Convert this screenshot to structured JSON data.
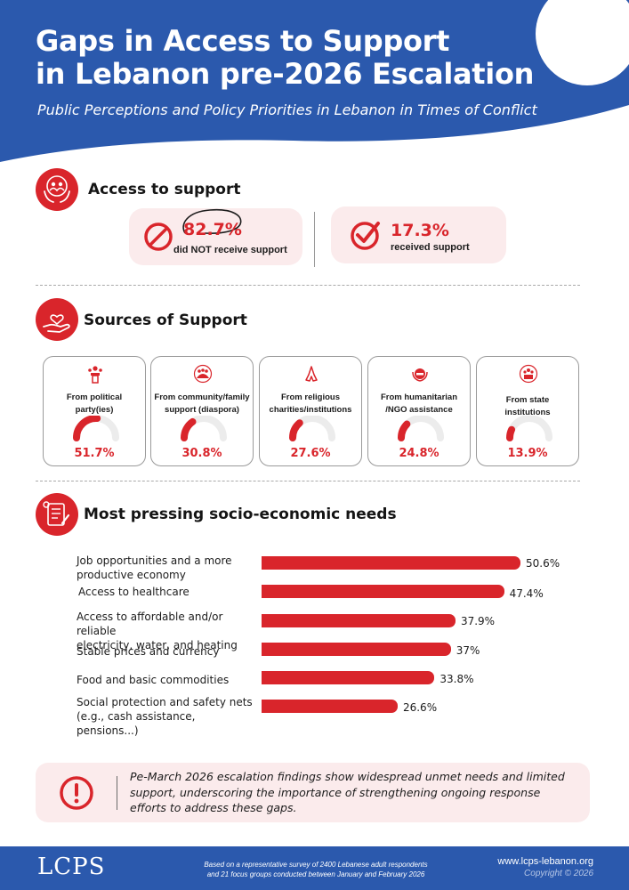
{
  "header": {
    "title_line1": "Gaps in Access to Support",
    "title_line2": "in Lebanon pre-2026 Escalation",
    "subtitle": "Public Perceptions and Policy Priorities in Lebanon in Times of Conflict"
  },
  "colors": {
    "brand_blue": "#2b59ad",
    "accent_red": "#d9252b",
    "card_pink": "#fbebec"
  },
  "access": {
    "title": "Access to support",
    "icon": "hands-people-icon",
    "not_received": {
      "pct": "82.7%",
      "label": "did NOT receive support",
      "icon": "prohibited-icon"
    },
    "received": {
      "pct": "17.3%",
      "label": "received support",
      "icon": "checkmark-icon"
    }
  },
  "sources": {
    "title": "Sources of Support",
    "icon": "hand-heart-icon",
    "items": [
      {
        "label_line1": "From political",
        "label_line2": "party(ies)",
        "pct": "51.7%",
        "value": 51.7,
        "icon": "podium-icon"
      },
      {
        "label_line1": "From community/family",
        "label_line2": "support (diaspora)",
        "pct": "30.8%",
        "value": 30.8,
        "icon": "group-icon"
      },
      {
        "label_line1": "From religious",
        "label_line2": "charities/institutions",
        "pct": "27.6%",
        "value": 27.6,
        "icon": "praying-hands-icon"
      },
      {
        "label_line1": "From humanitarian",
        "label_line2": "/NGO assistance",
        "pct": "24.8%",
        "value": 24.8,
        "icon": "ngo-emblem-icon"
      },
      {
        "label_line1": "From state",
        "label_line2": "institutions",
        "pct": "13.9%",
        "value": 13.9,
        "icon": "state-emblem-icon"
      }
    ]
  },
  "needs": {
    "title": "Most pressing socio-economic needs",
    "icon": "checklist-icon",
    "items": [
      {
        "label_line1": "Job opportunities and a more",
        "label_line2": "productive economy",
        "pct": "50.6%",
        "value": 50.6
      },
      {
        "label_line1": "Access to healthcare",
        "label_line2": "",
        "pct": "47.4%",
        "value": 47.4
      },
      {
        "label_line1": "Access to affordable and/or reliable",
        "label_line2": "electricity, water, and heating",
        "pct": "37.9%",
        "value": 37.9
      },
      {
        "label_line1": "Stable prices and currency",
        "label_line2": "",
        "pct": "37%",
        "value": 37
      },
      {
        "label_line1": "Food and basic commodities",
        "label_line2": "",
        "pct": "33.8%",
        "value": 33.8
      },
      {
        "label_line1": "Social protection and safety nets",
        "label_line2": "(e.g., cash assistance, pensions...)",
        "pct": "26.6%",
        "value": 26.6
      }
    ]
  },
  "note": {
    "icon": "exclamation-icon",
    "text": "Pe-March 2026 escalation findings show widespread unmet needs and limited support, underscoring the importance of strengthening ongoing response efforts to address these gaps."
  },
  "footer": {
    "logo": "LCPS",
    "survey_line1": "Based on a representative survey of 2400 Lebanese adult respondents",
    "survey_line2": "and 21 focus groups conducted between January and February 2026",
    "url": "www.lcps-lebanon.org",
    "copyright": "Copyright © 2026"
  }
}
